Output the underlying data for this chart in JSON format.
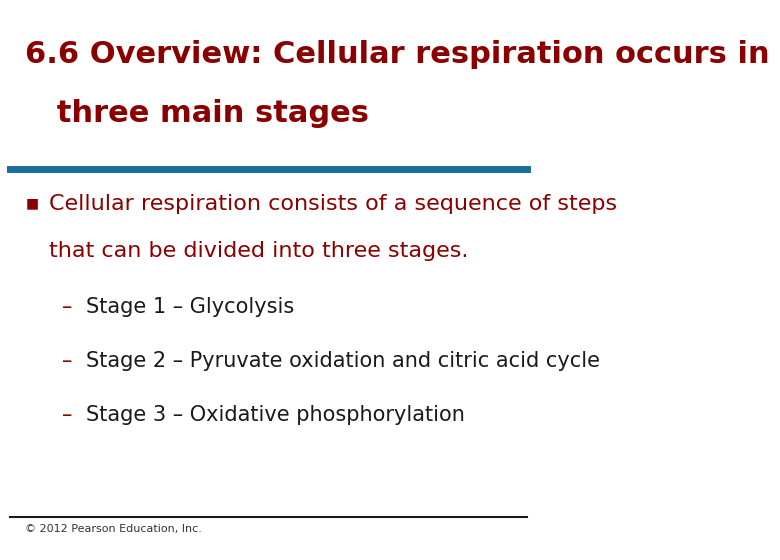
{
  "title_line1": "6.6 Overview: Cellular respiration occurs in",
  "title_line2": "   three main stages",
  "title_color": "#8B0000",
  "title_fontsize": 22,
  "title_bold": true,
  "divider_color_top": "#1a6e9e",
  "divider_color_bottom": "#1a1a1a",
  "bg_color": "#ffffff",
  "bullet_color": "#8B0000",
  "bullet_text_color": "#8B0000",
  "body_text_color": "#1a1a1a",
  "sub_text_color": "#1a1a1a",
  "bullet_marker": "■",
  "bullet_line1": "Cellular respiration consists of a sequence of steps",
  "bullet_line2": "that can be divided into three stages.",
  "sub_items": [
    "Stage 1 – Glycolysis",
    "Stage 2 – Pyruvate oxidation and citric acid cycle",
    "Stage 3 – Oxidative phosphorylation"
  ],
  "sub_dash_color": "#8B0000",
  "footer_text": "© 2012 Pearson Education, Inc.",
  "footer_fontsize": 8,
  "body_fontsize": 16,
  "sub_fontsize": 15
}
